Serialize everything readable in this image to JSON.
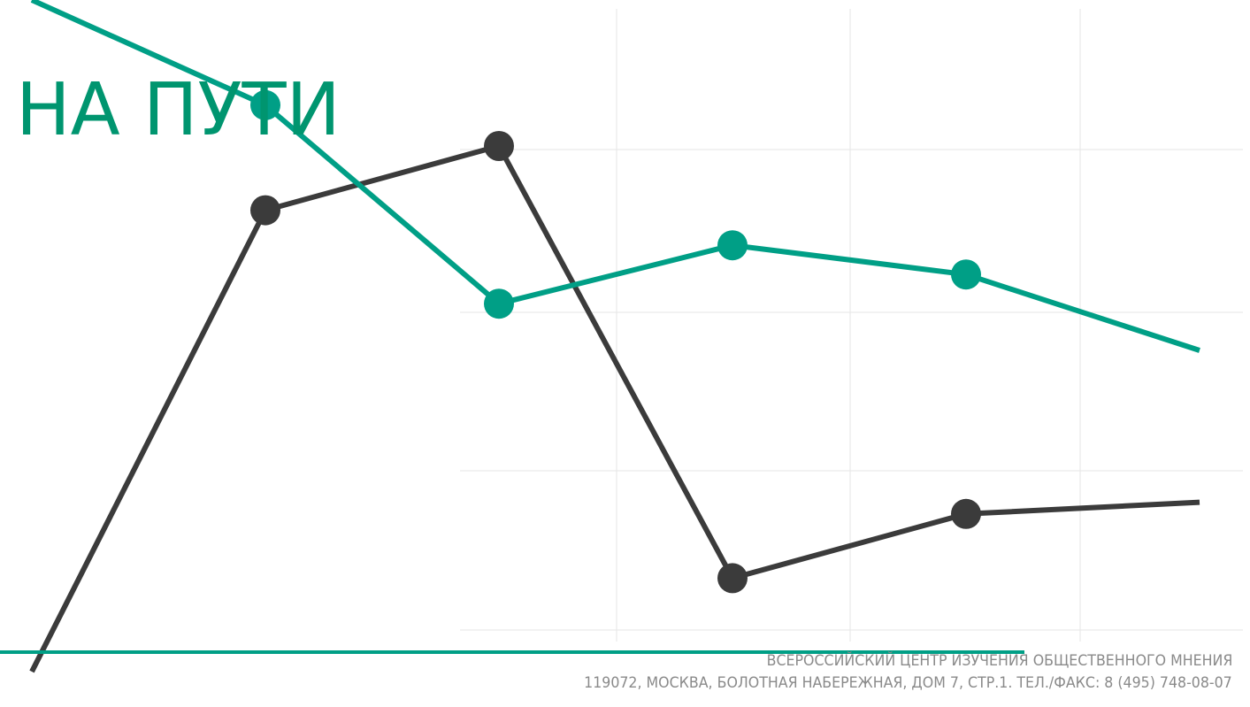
{
  "slide": {
    "title": "НА ПУТИ"
  },
  "footer": {
    "organization": "ВСЕРОССИЙСКИЙ ЦЕНТР ИЗУЧЕНИЯ ОБЩЕСТВЕННОГО МНЕНИЯ",
    "address": "119072, МОСКВА, БОЛОТНАЯ НАБЕРЕЖНАЯ, ДОМ 7, СТР.1. ТЕЛ./ФАКС: 8 (495) 748-08-07"
  },
  "colors": {
    "accent_green": "#009f86",
    "title_green": "#00956f",
    "dark_series": "#3b3b3b",
    "grid": "#e6e6e6",
    "footer_text": "#8a8a8a",
    "background": "#ffffff"
  },
  "chart_data": {
    "type": "line",
    "title": "",
    "xlabel": "",
    "ylabel": "",
    "grid": true,
    "legend": "none",
    "x": [
      0,
      1,
      2,
      3,
      4,
      5,
      6
    ],
    "xlim": [
      0,
      6
    ],
    "ylim": [
      0,
      100
    ],
    "series": [
      {
        "color": "#009f86",
        "values": [
          100,
          82,
          48,
          58,
          53,
          40,
          null
        ],
        "markers": [
          false,
          true,
          true,
          true,
          true,
          false,
          false
        ]
      },
      {
        "color": "#3b3b3b",
        "values": [
          -15,
          64,
          75,
          1,
          12,
          14,
          null
        ],
        "markers": [
          false,
          true,
          true,
          true,
          true,
          false,
          false
        ]
      }
    ]
  }
}
